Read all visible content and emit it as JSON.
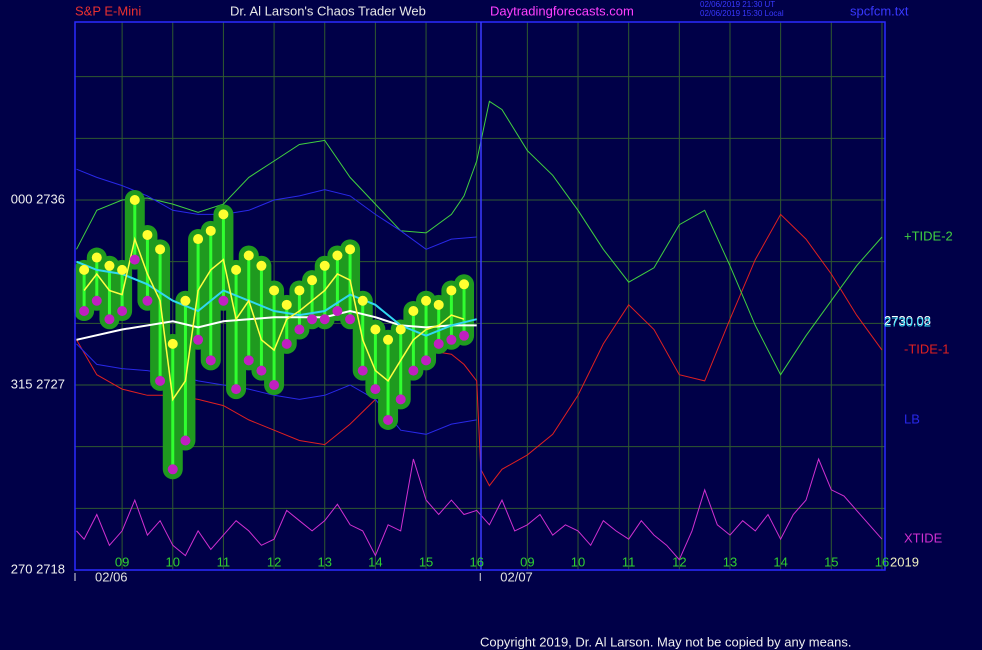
{
  "header": {
    "symbol": "S&P E-Mini",
    "title": "Dr. Al Larson's Chaos Trader Web",
    "site": "Daytradingforecasts.com",
    "stamp1": "02/06/2019 21:30 UT",
    "stamp2": "02/06/2019 15:30 Local",
    "file": "spcfcm.txt"
  },
  "chart_data": {
    "type": "line",
    "xlim": [
      0.07,
      16.06
    ],
    "ylim": [
      2718,
      2744.66
    ],
    "xticks": [
      {
        "value": 1,
        "label": "09"
      },
      {
        "value": 2,
        "label": "10"
      },
      {
        "value": 3,
        "label": "11"
      },
      {
        "value": 4,
        "label": "12"
      },
      {
        "value": 5,
        "label": "13"
      },
      {
        "value": 6,
        "label": "14"
      },
      {
        "value": 7,
        "label": "15"
      },
      {
        "value": 8,
        "label": "16"
      },
      {
        "value": 9,
        "label": "09"
      },
      {
        "value": 10,
        "label": "10"
      },
      {
        "value": 11,
        "label": "11"
      },
      {
        "value": 12,
        "label": "12"
      },
      {
        "value": 13,
        "label": "13"
      },
      {
        "value": 14,
        "label": "14"
      },
      {
        "value": 15,
        "label": "15"
      },
      {
        "value": 16,
        "label": "16"
      }
    ],
    "date_ticks": [
      {
        "value": 0.07,
        "label": "02/06"
      },
      {
        "value": 8.07,
        "label": "02/07"
      }
    ],
    "year": "2019",
    "yticks": [
      {
        "value": 2718,
        "label": "270 2718"
      },
      {
        "value": 2727,
        "label": "315 2727"
      },
      {
        "value": 2736,
        "label": "000 2736"
      }
    ],
    "ygrid": [
      2721,
      2724,
      2730,
      2733,
      2739,
      2742
    ],
    "grid": true,
    "series": [
      {
        "name": "XTIDE",
        "color": "#d030d0",
        "x": [
          0.1,
          0.25,
          0.5,
          0.75,
          1,
          1.25,
          1.5,
          1.75,
          2,
          2.25,
          2.5,
          2.75,
          3,
          3.25,
          3.5,
          3.75,
          4,
          4.25,
          4.5,
          4.75,
          5,
          5.25,
          5.5,
          5.75,
          6,
          6.25,
          6.5,
          6.75,
          7,
          7.25,
          7.5,
          7.75,
          8,
          8.25,
          8.5,
          8.75,
          9,
          9.25,
          9.5,
          9.75,
          10,
          10.25,
          10.5,
          10.75,
          11,
          11.25,
          11.5,
          11.75,
          12,
          12.25,
          12.5,
          12.75,
          13,
          13.25,
          13.5,
          13.75,
          14,
          14.25,
          14.5,
          14.75,
          15,
          15.25,
          15.5,
          15.75,
          16
        ],
        "values": [
          2719.9,
          2719.5,
          2720.7,
          2719.2,
          2719.9,
          2721.4,
          2719.7,
          2720.4,
          2719.2,
          2718.7,
          2719.9,
          2719.0,
          2719.7,
          2720.4,
          2719.9,
          2719.2,
          2719.5,
          2720.9,
          2720.4,
          2719.9,
          2720.4,
          2721.2,
          2720.2,
          2719.9,
          2718.7,
          2720.2,
          2719.9,
          2723.4,
          2721.4,
          2720.7,
          2721.4,
          2720.7,
          2720.9,
          2720.2,
          2721.4,
          2719.9,
          2720.2,
          2720.7,
          2719.7,
          2720.2,
          2719.9,
          2719.2,
          2720.4,
          2719.9,
          2719.5,
          2720.4,
          2719.7,
          2719.2,
          2718.5,
          2719.9,
          2721.9,
          2720.2,
          2719.7,
          2720.4,
          2719.9,
          2720.7,
          2719.5,
          2720.7,
          2721.4,
          2723.4,
          2721.9,
          2721.6,
          2720.9,
          2720.2,
          2719.5
        ]
      },
      {
        "name": "-TIDE-1",
        "color": "#e02020",
        "x": [
          0.1,
          0.5,
          1,
          1.5,
          2,
          2.5,
          3,
          3.5,
          4,
          4.5,
          5,
          5.5,
          6,
          6.5,
          7,
          7.5,
          7.75,
          8,
          8.08,
          8.25,
          8.5,
          9,
          9.5,
          10,
          10.5,
          11,
          11.5,
          12,
          12.5,
          13,
          13.5,
          14,
          14.5,
          15,
          15.5,
          16
        ],
        "values": [
          2729.2,
          2727.5,
          2726.8,
          2726.5,
          2726.5,
          2726.3,
          2726.0,
          2725.3,
          2724.8,
          2724.3,
          2724.1,
          2725.1,
          2726.3,
          2728.2,
          2728.7,
          2728.5,
          2728.0,
          2727.2,
          2722.9,
          2722.1,
          2722.9,
          2723.6,
          2724.6,
          2726.5,
          2729.0,
          2730.9,
          2729.7,
          2727.5,
          2727.2,
          2730.2,
          2733.1,
          2735.3,
          2734.1,
          2732.4,
          2730.4,
          2728.7
        ]
      },
      {
        "name": "+TIDE-2",
        "color": "#40d040",
        "x": [
          0.1,
          0.5,
          1,
          1.5,
          2,
          2.5,
          3,
          3.5,
          4,
          4.5,
          5,
          5.5,
          6,
          6.5,
          7,
          7.5,
          7.75,
          8,
          8.25,
          8.5,
          9,
          9.5,
          10,
          10.5,
          11,
          11.5,
          12,
          12.5,
          13,
          13.5,
          14,
          14.5,
          15,
          15.5,
          16
        ],
        "values": [
          2733.6,
          2735.5,
          2736.0,
          2736.1,
          2735.8,
          2735.4,
          2735.8,
          2737.1,
          2737.9,
          2738.7,
          2738.9,
          2737.1,
          2735.8,
          2734.5,
          2734.4,
          2735.3,
          2736.2,
          2737.9,
          2740.8,
          2740.4,
          2738.4,
          2737.2,
          2735.5,
          2733.6,
          2732.0,
          2732.7,
          2734.8,
          2735.5,
          2732.8,
          2729.9,
          2727.5,
          2729.4,
          2731.1,
          2732.8,
          2734.2
        ]
      },
      {
        "color": "#2828e8",
        "x": [
          0.1,
          0.5,
          1,
          1.5,
          2,
          2.5,
          3,
          3.5,
          4,
          4.5,
          5,
          5.5,
          6,
          6.5,
          7,
          7.5,
          8
        ],
        "values": [
          2737.5,
          2737.1,
          2736.7,
          2736.2,
          2735.5,
          2735.3,
          2735.3,
          2735.5,
          2736.0,
          2736.2,
          2736.5,
          2736.2,
          2735.3,
          2734.5,
          2733.6,
          2734.1,
          2734.2
        ]
      },
      {
        "name": "LB",
        "color": "#2828e8",
        "x": [
          0.1,
          0.5,
          1,
          1.5,
          2,
          2.5,
          3,
          3.5,
          4,
          4.5,
          5,
          5.5,
          6,
          6.5,
          7,
          7.5,
          8
        ],
        "values": [
          2729.0,
          2728.0,
          2727.8,
          2727.7,
          2727.5,
          2727.2,
          2727.0,
          2726.8,
          2726.5,
          2726.3,
          2726.5,
          2727.0,
          2726.3,
          2724.8,
          2724.6,
          2725.1,
          2725.3
        ]
      }
    ],
    "bars": {
      "bar_color": "#30ff30",
      "glow_color": "#1f9a1f",
      "high_color": "#ffff30",
      "low_color": "#c020c0",
      "close_color": "#ffff40",
      "x": [
        0.25,
        0.5,
        0.75,
        1,
        1.25,
        1.5,
        1.75,
        2,
        2.25,
        2.5,
        2.75,
        3,
        3.25,
        3.5,
        3.75,
        4,
        4.25,
        4.5,
        4.75,
        5,
        5.25,
        5.5,
        5.75,
        6,
        6.25,
        6.5,
        6.75,
        7,
        7.25,
        7.5,
        7.75
      ],
      "high": [
        2732.6,
        2733.2,
        2732.8,
        2732.6,
        2736.0,
        2734.3,
        2733.6,
        2729.0,
        2731.1,
        2734.1,
        2734.5,
        2735.3,
        2732.6,
        2733.3,
        2732.8,
        2731.6,
        2730.9,
        2731.6,
        2732.1,
        2732.8,
        2733.3,
        2733.6,
        2731.1,
        2729.7,
        2729.2,
        2729.7,
        2730.6,
        2731.1,
        2730.9,
        2731.6,
        2731.9
      ],
      "low": [
        2730.6,
        2731.1,
        2730.2,
        2730.6,
        2733.1,
        2731.1,
        2727.2,
        2722.9,
        2724.3,
        2729.2,
        2728.2,
        2731.1,
        2726.8,
        2728.2,
        2727.7,
        2727.0,
        2729.0,
        2729.7,
        2730.2,
        2730.2,
        2730.6,
        2730.2,
        2727.7,
        2726.8,
        2725.3,
        2726.3,
        2727.7,
        2728.2,
        2729.0,
        2729.2,
        2729.4
      ],
      "close": [
        2731.6,
        2732.4,
        2731.6,
        2731.4,
        2734.1,
        2732.4,
        2731.1,
        2726.3,
        2727.2,
        2731.6,
        2732.6,
        2733.1,
        2730.2,
        2731.1,
        2729.2,
        2728.7,
        2730.2,
        2730.6,
        2731.1,
        2731.6,
        2732.4,
        2732.1,
        2729.2,
        2727.7,
        2727.2,
        2728.2,
        2729.2,
        2729.7,
        2729.9,
        2730.4,
        2730.2
      ]
    },
    "averages": [
      {
        "color": "#ffffff",
        "x": [
          0.1,
          1,
          2,
          2.5,
          3,
          4,
          5,
          5.5,
          6,
          6.5,
          7,
          7.5,
          8
        ],
        "values": [
          2729.2,
          2729.7,
          2730.1,
          2729.8,
          2730.1,
          2730.3,
          2730.3,
          2730.6,
          2730.3,
          2729.9,
          2729.8,
          2729.9,
          2729.9
        ],
        "last": {
          "value": 2730.08,
          "label": "2730.08"
        }
      },
      {
        "color": "#30d8f0",
        "x": [
          0.1,
          0.5,
          1,
          1.5,
          2,
          2.5,
          3,
          3.5,
          4,
          4.5,
          5,
          5.5,
          6,
          6.5,
          7,
          7.5,
          8
        ],
        "values": [
          2733.0,
          2732.6,
          2732.4,
          2731.9,
          2731.1,
          2730.6,
          2731.6,
          2731.1,
          2730.6,
          2730.4,
          2730.6,
          2731.4,
          2730.9,
          2729.9,
          2729.4,
          2729.9,
          2730.2
        ],
        "last": {
          "value": 2730.02,
          "label": "2730.02"
        }
      }
    ]
  },
  "copyright": "Copyright 2019, Dr. Al Larson. May not be copied by any means."
}
